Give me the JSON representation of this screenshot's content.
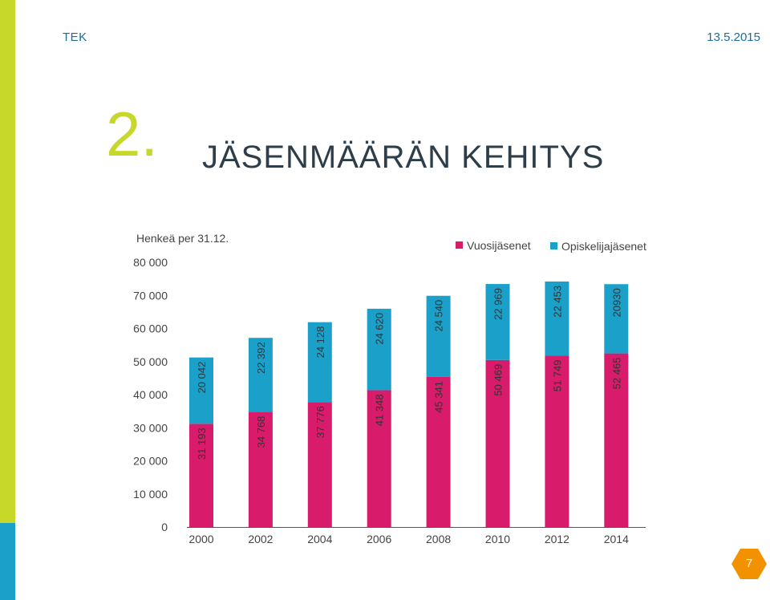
{
  "header": {
    "org": "TEK",
    "date": "13.5.2015"
  },
  "title": {
    "number": "2.",
    "text": "JÄSENMÄÄRÄN KEHITYS"
  },
  "page_number": "7",
  "colors": {
    "lime": "#c8d82b",
    "blue": "#1ba1c9",
    "magenta": "#d81b6a",
    "accent_orange": "#f39200"
  },
  "chart_data": {
    "type": "bar",
    "stacked": true,
    "unit_label": "Henkeä per 31.12.",
    "categories": [
      "2000",
      "2002",
      "2004",
      "2006",
      "2008",
      "2010",
      "2012",
      "2014"
    ],
    "series": [
      {
        "name": "Vuosijäsenet",
        "color": "#d81b6a",
        "values": [
          31193,
          34768,
          37776,
          41348,
          45341,
          50469,
          51749,
          52465
        ],
        "labels": [
          "31 193",
          "34 768",
          "37 776",
          "41 348",
          "45 341",
          "50 469",
          "51 749",
          "52 465"
        ]
      },
      {
        "name": "Opiskelijajäsenet",
        "color": "#1ba1c9",
        "values": [
          20042,
          22392,
          24128,
          24620,
          24540,
          22969,
          22453,
          20930
        ],
        "labels": [
          "20 042",
          "22 392",
          "24 128",
          "24 620",
          "24 540",
          "22 969",
          "22 453",
          "20930"
        ]
      }
    ],
    "ylim": [
      0,
      80000
    ],
    "yticks": [
      0,
      10000,
      20000,
      30000,
      40000,
      50000,
      60000,
      70000,
      80000
    ],
    "ytick_labels": [
      "0",
      "10 000",
      "20 000",
      "30 000",
      "40 000",
      "50 000",
      "60 000",
      "70 000",
      "80 000"
    ],
    "legend_position": "top-right",
    "grid": false
  }
}
